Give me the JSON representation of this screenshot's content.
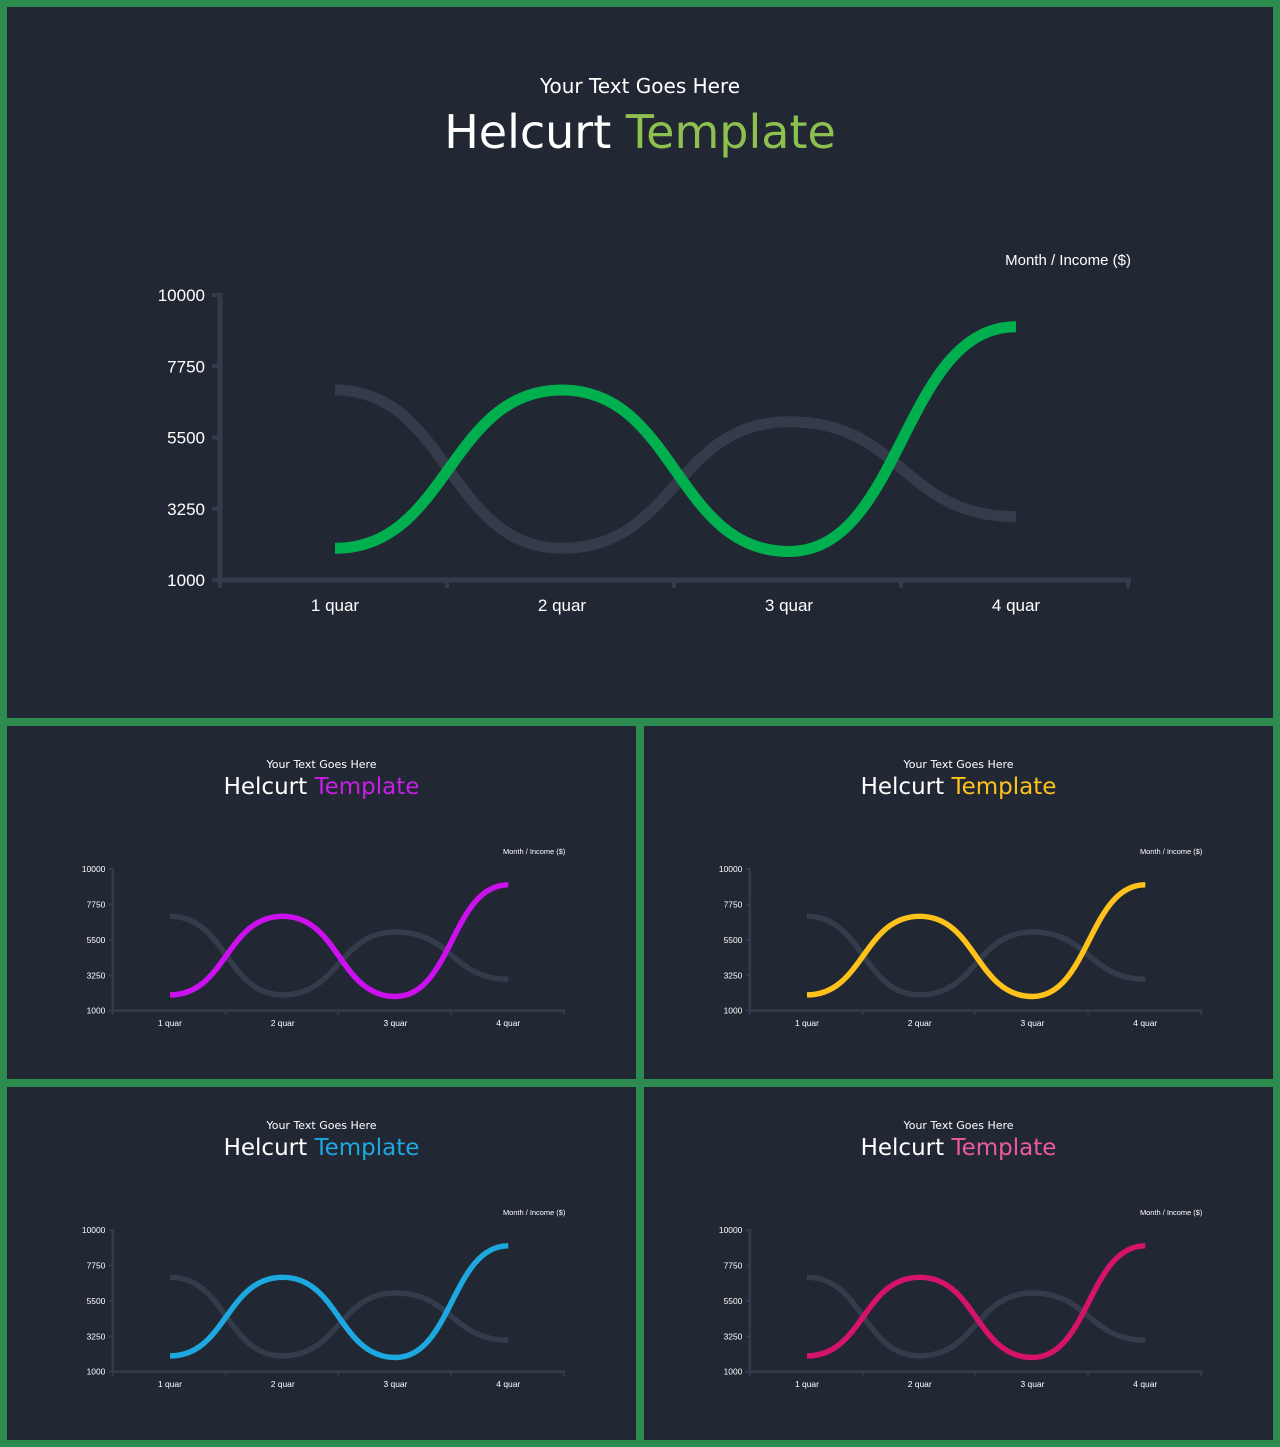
{
  "slides": [
    {
      "subtitle": "Your Text Goes Here",
      "title_main": "Helcurt",
      "title_accent": "Template",
      "accent": "#8dc04f",
      "line": "#00b04f",
      "unit_label": "Month  /  Income  ($)"
    },
    {
      "subtitle": "Your Text Goes Here",
      "title_main": "Helcurt",
      "title_accent": "Template",
      "accent": "#c81ee6",
      "line": "#cc11ee",
      "unit_label": "Month  /  Income  ($)"
    },
    {
      "subtitle": "Your Text Goes Here",
      "title_main": "Helcurt",
      "title_accent": "Template",
      "accent": "#ffc21a",
      "line": "#ffc21a",
      "unit_label": "Month  /  Income  ($)"
    },
    {
      "subtitle": "Your Text Goes Here",
      "title_main": "Helcurt",
      "title_accent": "Template",
      "accent": "#1ea8e0",
      "line": "#1ea8e0",
      "unit_label": "Month  /  Income  ($)"
    },
    {
      "subtitle": "Your Text Goes Here",
      "title_main": "Helcurt",
      "title_accent": "Template",
      "accent": "#ee5aa0",
      "line": "#d6136b",
      "unit_label": "Month  /  Income  ($)"
    }
  ],
  "chart_data": {
    "type": "line",
    "categories": [
      "1 quar",
      "2 quar",
      "3 quar",
      "4 quar"
    ],
    "yticks": [
      1000,
      3250,
      5500,
      7750,
      10000
    ],
    "ylim": [
      1000,
      10000
    ],
    "series": [
      {
        "values": [
          2000,
          7000,
          1900,
          9000
        ]
      },
      {
        "values": [
          7000,
          2000,
          6000,
          3000
        ]
      }
    ],
    "secondary_color": "#343c4c",
    "axis_color": "#343c4c",
    "grid": false
  }
}
